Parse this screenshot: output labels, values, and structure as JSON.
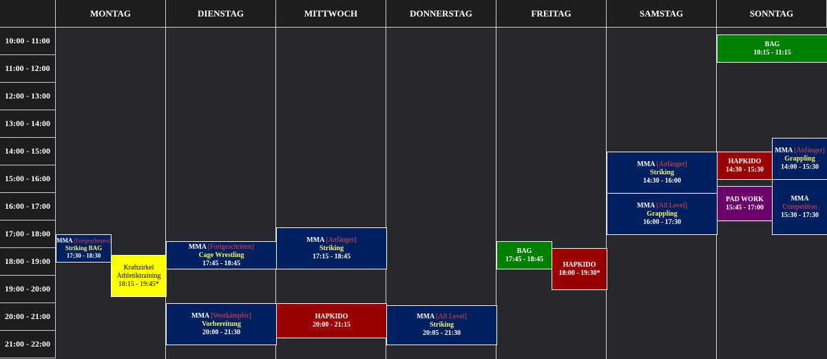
{
  "days": [
    "MONTAG",
    "DIENSTAG",
    "MITTWOCH",
    "DONNERSTAG",
    "FREITAG",
    "SAMSTAG",
    "SONNTAG"
  ],
  "times": [
    "10:00 - 11:00",
    "11:00 - 12:00",
    "12:00 - 13:00",
    "13:00 - 14:00",
    "14:00 - 15:00",
    "15:00 - 16:00",
    "16:00 - 17:00",
    "17:00 - 18:00",
    "18:00 - 19:00",
    "19:00 - 20:00",
    "20:00 - 21:00",
    "21:00 - 22:00"
  ],
  "colors": {
    "navy": "#002060",
    "red": "#9b0000",
    "green": "#008000",
    "yellow": "#ffff00",
    "purple": "#6a006a"
  },
  "events": [
    {
      "name": "mon-mma-striking-bag",
      "day": 0,
      "lane": 0,
      "lanes": 2,
      "start": "17:30",
      "end": "18:30",
      "color": "navy",
      "title": "MMA",
      "level": "[Fortgeschritten]",
      "type": "Striking BAG",
      "time": "17:30 - 18:30",
      "small": true
    },
    {
      "name": "mon-kraftzirkel",
      "day": 0,
      "lane": 1,
      "lanes": 2,
      "start": "18:15",
      "end": "19:45",
      "color": "yellow",
      "title": "Kraftzirkel",
      "level": "",
      "type": "Athletiktraining",
      "time": "18:15 - 19:45*",
      "dark": true
    },
    {
      "name": "tue-mma-cage-wrestling",
      "day": 1,
      "lane": 0,
      "lanes": 1,
      "start": "17:45",
      "end": "18:45",
      "color": "navy",
      "title": "MMA",
      "level": "[Fortgeschritten]",
      "type": "Cage Wrestling",
      "time": "17:45 - 18:45"
    },
    {
      "name": "tue-mma-vorbereitung",
      "day": 1,
      "lane": 0,
      "lanes": 1,
      "start": "20:00",
      "end": "21:30",
      "color": "navy",
      "title": "MMA",
      "level": "[Wettkämpfer]",
      "type": "Vorbereitung",
      "time": "20:00 - 21:30"
    },
    {
      "name": "wed-mma-striking",
      "day": 2,
      "lane": 0,
      "lanes": 1,
      "start": "17:15",
      "end": "18:45",
      "color": "navy",
      "title": "MMA",
      "level": "[Anfänger]",
      "type": "Striking",
      "time": "17:15 - 18:45"
    },
    {
      "name": "wed-hapkido",
      "day": 2,
      "lane": 0,
      "lanes": 1,
      "start": "20:00",
      "end": "21:15",
      "color": "red",
      "title": "HAPKIDO",
      "level": "",
      "type": "",
      "time": "20:00 - 21:15"
    },
    {
      "name": "thu-mma-striking",
      "day": 3,
      "lane": 0,
      "lanes": 1,
      "start": "20:05",
      "end": "21:30",
      "color": "navy",
      "title": "MMA",
      "level": "[All Level]",
      "type": "Striking",
      "time": "20:05 - 21:30"
    },
    {
      "name": "fri-bag",
      "day": 4,
      "lane": 0,
      "lanes": 2,
      "start": "17:45",
      "end": "18:45",
      "color": "green",
      "title": "BAG",
      "level": "",
      "type": "",
      "time": "17:45 - 18:45"
    },
    {
      "name": "fri-hapkido",
      "day": 4,
      "lane": 1,
      "lanes": 2,
      "start": "18:00",
      "end": "19:30",
      "color": "red",
      "title": "HAPKIDO",
      "level": "",
      "type": "",
      "time": "18:00 - 19:30*"
    },
    {
      "name": "sat-mma-striking",
      "day": 5,
      "lane": 0,
      "lanes": 1,
      "start": "14:30",
      "end": "16:00",
      "color": "navy",
      "title": "MMA",
      "level": "[Anfänger]",
      "type": "Striking",
      "time": "14:30 - 16:00"
    },
    {
      "name": "sat-mma-grappling",
      "day": 5,
      "lane": 0,
      "lanes": 1,
      "start": "16:00",
      "end": "17:30",
      "color": "navy",
      "title": "MMA",
      "level": "[All Level]",
      "type": "Grappling",
      "time": "16:00 - 17:30"
    },
    {
      "name": "sun-bag",
      "day": 6,
      "lane": 0,
      "lanes": 1,
      "start": "10:15",
      "end": "11:15",
      "color": "green",
      "title": "BAG",
      "level": "",
      "type": "",
      "time": "10:15 - 11:15"
    },
    {
      "name": "sun-hapkido",
      "day": 6,
      "lane": 0,
      "lanes": 2,
      "start": "14:30",
      "end": "15:30",
      "color": "red",
      "title": "HAPKIDO",
      "level": "",
      "type": "",
      "time": "14:30 - 15:30"
    },
    {
      "name": "sun-pad-work",
      "day": 6,
      "lane": 0,
      "lanes": 2,
      "start": "15:45",
      "end": "17:00",
      "color": "purple",
      "title": "PAD WORK",
      "level": "",
      "type": "",
      "time": "15:45 - 17:00"
    },
    {
      "name": "sun-mma-grappling",
      "day": 6,
      "lane": 1,
      "lanes": 2,
      "start": "14:00",
      "end": "15:30",
      "color": "navy",
      "title": "MMA",
      "level": "[Anfänger]",
      "type": "Grappling",
      "time": "14:00 - 15:30"
    },
    {
      "name": "sun-mma-competition",
      "day": 6,
      "lane": 1,
      "lanes": 2,
      "start": "15:30",
      "end": "17:30",
      "color": "navy",
      "title": "MMA",
      "level": "",
      "type": "Competition",
      "time": "15:30 - 17:30",
      "typeRed": true
    }
  ]
}
